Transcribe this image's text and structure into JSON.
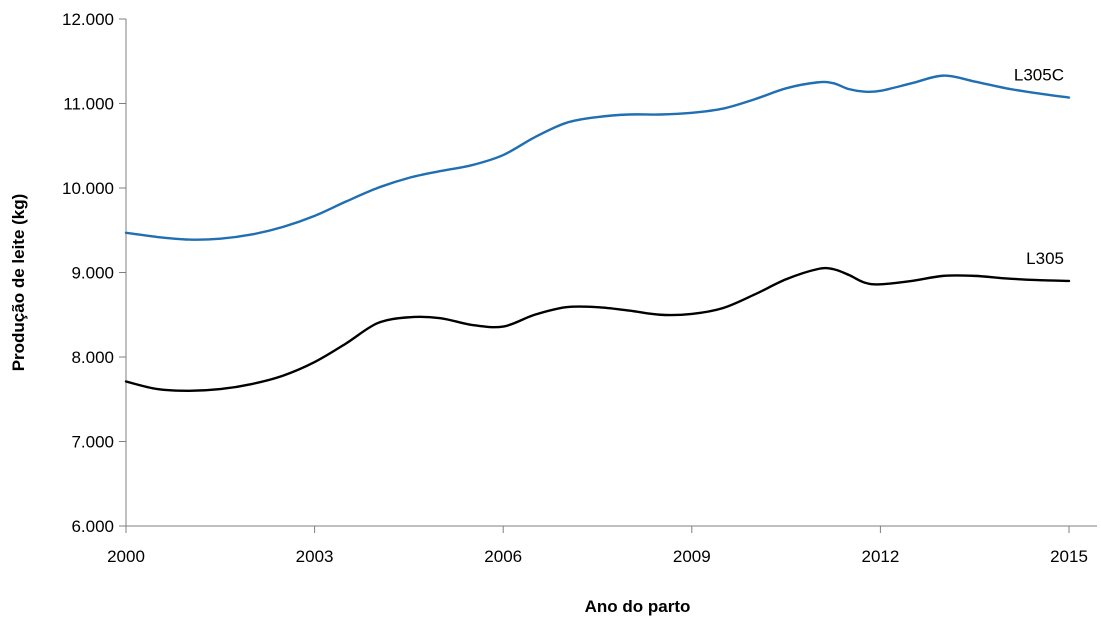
{
  "chart_data": {
    "type": "line",
    "xlabel": "Ano do parto",
    "ylabel": "Produção de leite (kg)",
    "xlim": [
      2000,
      2015
    ],
    "ylim": [
      6000,
      12000
    ],
    "x_ticks": [
      2000,
      2003,
      2006,
      2009,
      2012,
      2015
    ],
    "x_tick_labels": [
      "2000",
      "2003",
      "2006",
      "2009",
      "2012",
      "2015"
    ],
    "y_ticks": [
      6000,
      7000,
      8000,
      9000,
      10000,
      11000,
      12000
    ],
    "y_tick_labels": [
      "6.000",
      "7.000",
      "8.000",
      "9.000",
      "10.000",
      "11.000",
      "12.000"
    ],
    "grid": false,
    "legend": "none",
    "series": [
      {
        "name": "L305C",
        "color": "#1f6fb2",
        "x": [
          2000,
          2000.5,
          2001,
          2001.5,
          2002,
          2002.5,
          2003,
          2003.5,
          2004,
          2004.5,
          2005,
          2005.5,
          2006,
          2006.5,
          2007,
          2007.5,
          2008,
          2008.5,
          2009,
          2009.5,
          2010,
          2010.5,
          2011,
          2011.25,
          2011.5,
          2011.75,
          2012,
          2012.5,
          2013,
          2013.5,
          2014,
          2014.5,
          2015
        ],
        "values": [
          9470,
          9420,
          9390,
          9400,
          9450,
          9540,
          9670,
          9840,
          10000,
          10120,
          10200,
          10270,
          10390,
          10600,
          10770,
          10840,
          10870,
          10870,
          10890,
          10940,
          11050,
          11180,
          11250,
          11240,
          11170,
          11140,
          11150,
          11240,
          11330,
          11260,
          11180,
          11120,
          11070
        ]
      },
      {
        "name": "L305",
        "color": "#000000",
        "x": [
          2000,
          2000.5,
          2001,
          2001.5,
          2002,
          2002.5,
          2003,
          2003.5,
          2004,
          2004.5,
          2005,
          2005.5,
          2006,
          2006.5,
          2007,
          2007.5,
          2008,
          2008.5,
          2009,
          2009.5,
          2010,
          2010.5,
          2011,
          2011.25,
          2011.5,
          2011.75,
          2012,
          2012.5,
          2013,
          2013.5,
          2014,
          2014.5,
          2015
        ],
        "values": [
          7710,
          7620,
          7600,
          7620,
          7680,
          7780,
          7940,
          8160,
          8400,
          8470,
          8460,
          8380,
          8360,
          8500,
          8590,
          8590,
          8550,
          8500,
          8510,
          8580,
          8740,
          8920,
          9040,
          9040,
          8970,
          8880,
          8860,
          8900,
          8960,
          8960,
          8930,
          8910,
          8900
        ]
      }
    ]
  }
}
